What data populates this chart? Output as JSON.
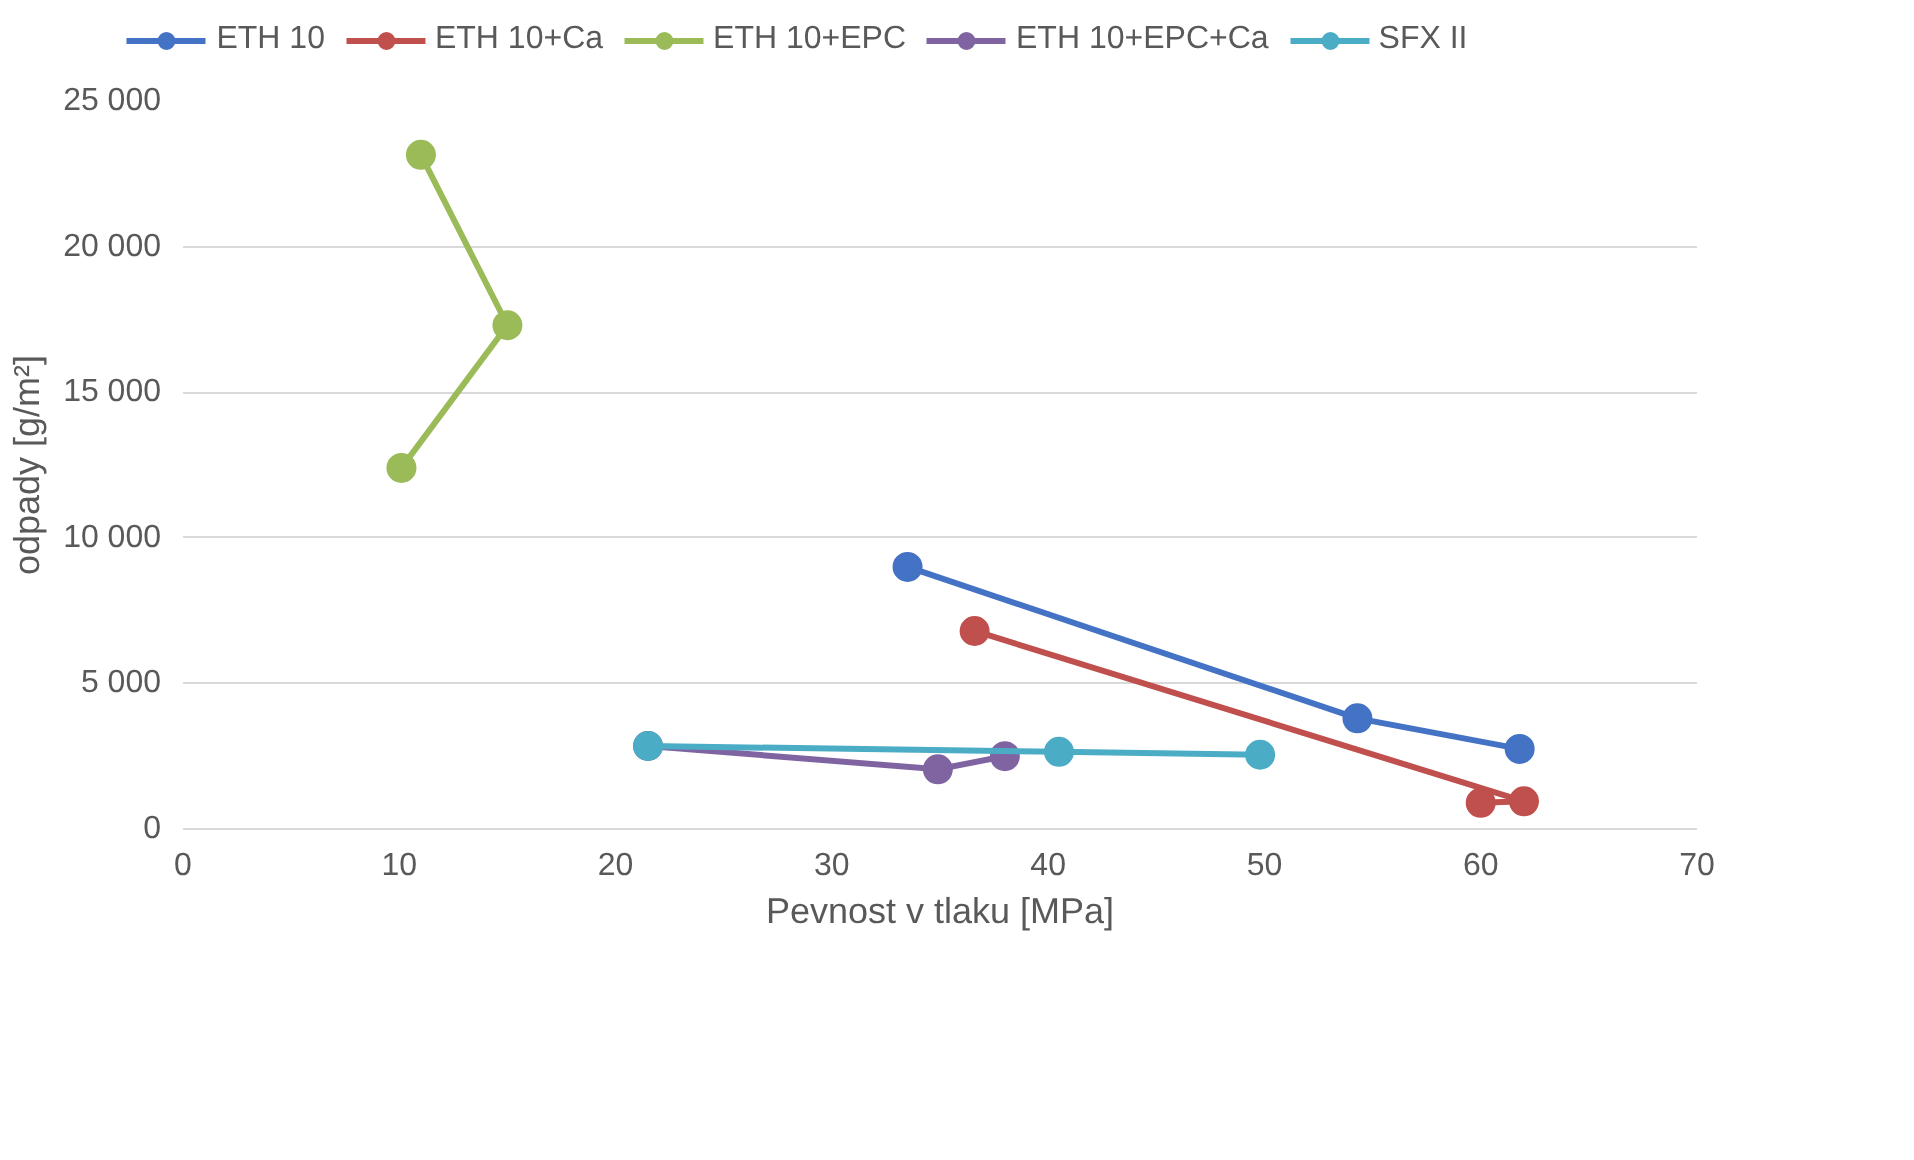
{
  "chart_data": {
    "type": "line",
    "xlabel": "Pevnost v tlaku [MPa]",
    "ylabel": "odpady [g/m²]",
    "xlim": [
      0,
      70
    ],
    "xticks": [
      0,
      10,
      20,
      30,
      40,
      50,
      60,
      70
    ],
    "ylim": [
      0,
      25000
    ],
    "yticks": [
      {
        "value": 0,
        "label": "0"
      },
      {
        "value": 5000,
        "label": "5 000"
      },
      {
        "value": 10000,
        "label": "10 000"
      },
      {
        "value": 15000,
        "label": "15 000"
      },
      {
        "value": 20000,
        "label": "20 000"
      },
      {
        "value": 25000,
        "label": "25 000"
      }
    ],
    "grid": "y",
    "legend": "top",
    "marker": "circle",
    "line_style": "solid",
    "series": [
      {
        "name": "ETH 10",
        "color": "#4472c4",
        "x": [
          33.5,
          54.3,
          61.8
        ],
        "values": [
          9000,
          3800,
          2750
        ]
      },
      {
        "name": "ETH 10+Ca",
        "color": "#c0504d",
        "x": [
          36.6,
          62.0,
          60.0
        ],
        "values": [
          6800,
          950,
          900
        ]
      },
      {
        "name": "ETH 10+EPC",
        "color": "#9bbb59",
        "x": [
          11.0,
          15.0,
          10.1
        ],
        "values": [
          23150,
          17300,
          12400
        ]
      },
      {
        "name": "ETH 10+EPC+Ca",
        "color": "#8064a2",
        "x": [
          21.5,
          34.9,
          38.0
        ],
        "values": [
          2850,
          2050,
          2500
        ]
      },
      {
        "name": "SFX II",
        "color": "#4bacc6",
        "x": [
          21.5,
          40.5,
          49.8
        ],
        "values": [
          2850,
          2650,
          2550
        ]
      }
    ]
  }
}
